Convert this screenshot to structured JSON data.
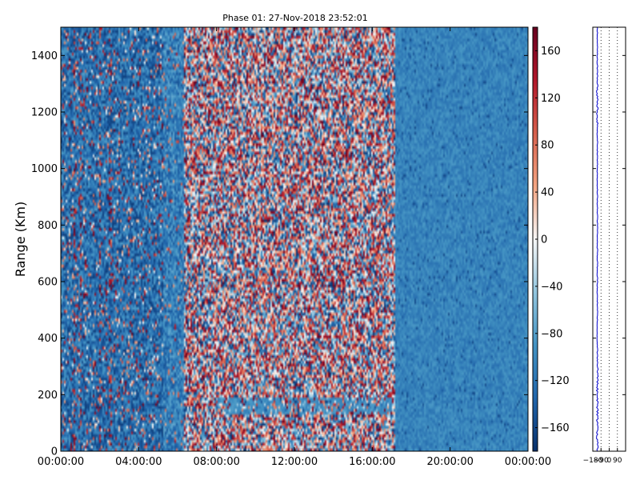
{
  "chart_data": [
    {
      "type": "heatmap",
      "title": "Phase 01: 27-Nov-2018 23:52:01",
      "ylabel": "Range (Km)",
      "xlabel": "",
      "x_ticks": [
        "00:00:00",
        "04:00:00",
        "08:00:00",
        "12:00:00",
        "16:00:00",
        "20:00:00",
        "00:00:00"
      ],
      "x_range_hours": [
        0,
        24
      ],
      "y_ticks": [
        0,
        200,
        400,
        600,
        800,
        1000,
        1200,
        1400
      ],
      "ylim": [
        0,
        1500
      ],
      "colorbar": {
        "ticks": [
          160,
          120,
          80,
          40,
          0,
          -40,
          -80,
          -120,
          -160
        ],
        "clim": [
          -180,
          180
        ],
        "colormap": "RdBu_r",
        "colors": [
          "#08306b",
          "#2166ac",
          "#4393c3",
          "#92c5de",
          "#f7f7f7",
          "#f4a582",
          "#d6604d",
          "#b2182b",
          "#67001f"
        ]
      },
      "regions": [
        {
          "time_hours": [
            0,
            5.3
          ],
          "character": "mixed blue with scattered red"
        },
        {
          "time_hours": [
            5.3,
            6.3
          ],
          "character": "mostly blue"
        },
        {
          "time_hours": [
            6.3,
            17.2
          ],
          "character": "random phase, strongly mixed red/blue"
        },
        {
          "time_hours": [
            17.2,
            24
          ],
          "character": "uniform light blue"
        }
      ]
    },
    {
      "type": "line",
      "x_ticks": [
        "−180",
        "−90",
        "0",
        "90"
      ],
      "xlim": [
        -180,
        180
      ],
      "ylim": [
        0,
        1500
      ],
      "grid": "vertical dotted",
      "line_color": "#0000cc",
      "approx_value": -130
    }
  ]
}
